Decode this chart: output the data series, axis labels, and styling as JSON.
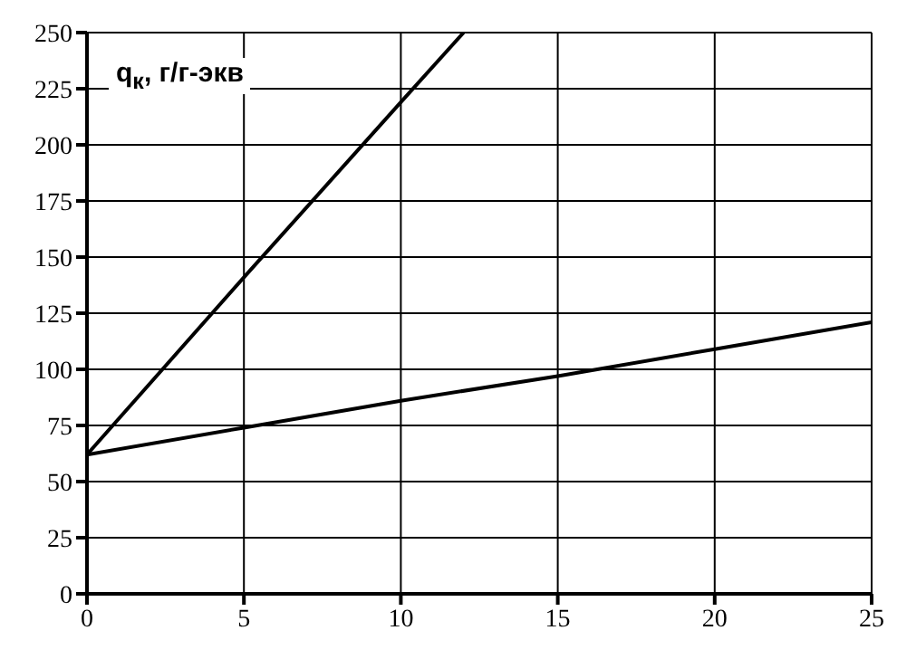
{
  "chart_data": {
    "type": "line",
    "ylabel": "q$_{к}$, г/г-экв",
    "xlim": [
      0,
      25
    ],
    "xticks": [
      0,
      5,
      10,
      15,
      20,
      25
    ],
    "ylim": [
      0,
      250
    ],
    "yticks": [
      0,
      25,
      50,
      75,
      100,
      125,
      150,
      175,
      200,
      225,
      250
    ],
    "grid": true,
    "marker": "none",
    "line_style": "solid",
    "series": [
      {
        "color": "#000000",
        "x": [
          0,
          5,
          10,
          12
        ],
        "values": [
          62,
          141,
          219,
          250
        ]
      },
      {
        "color": "#000000",
        "x": [
          0,
          5,
          10,
          15,
          20,
          25
        ],
        "values": [
          62,
          74,
          86,
          97,
          109,
          121
        ]
      }
    ]
  }
}
